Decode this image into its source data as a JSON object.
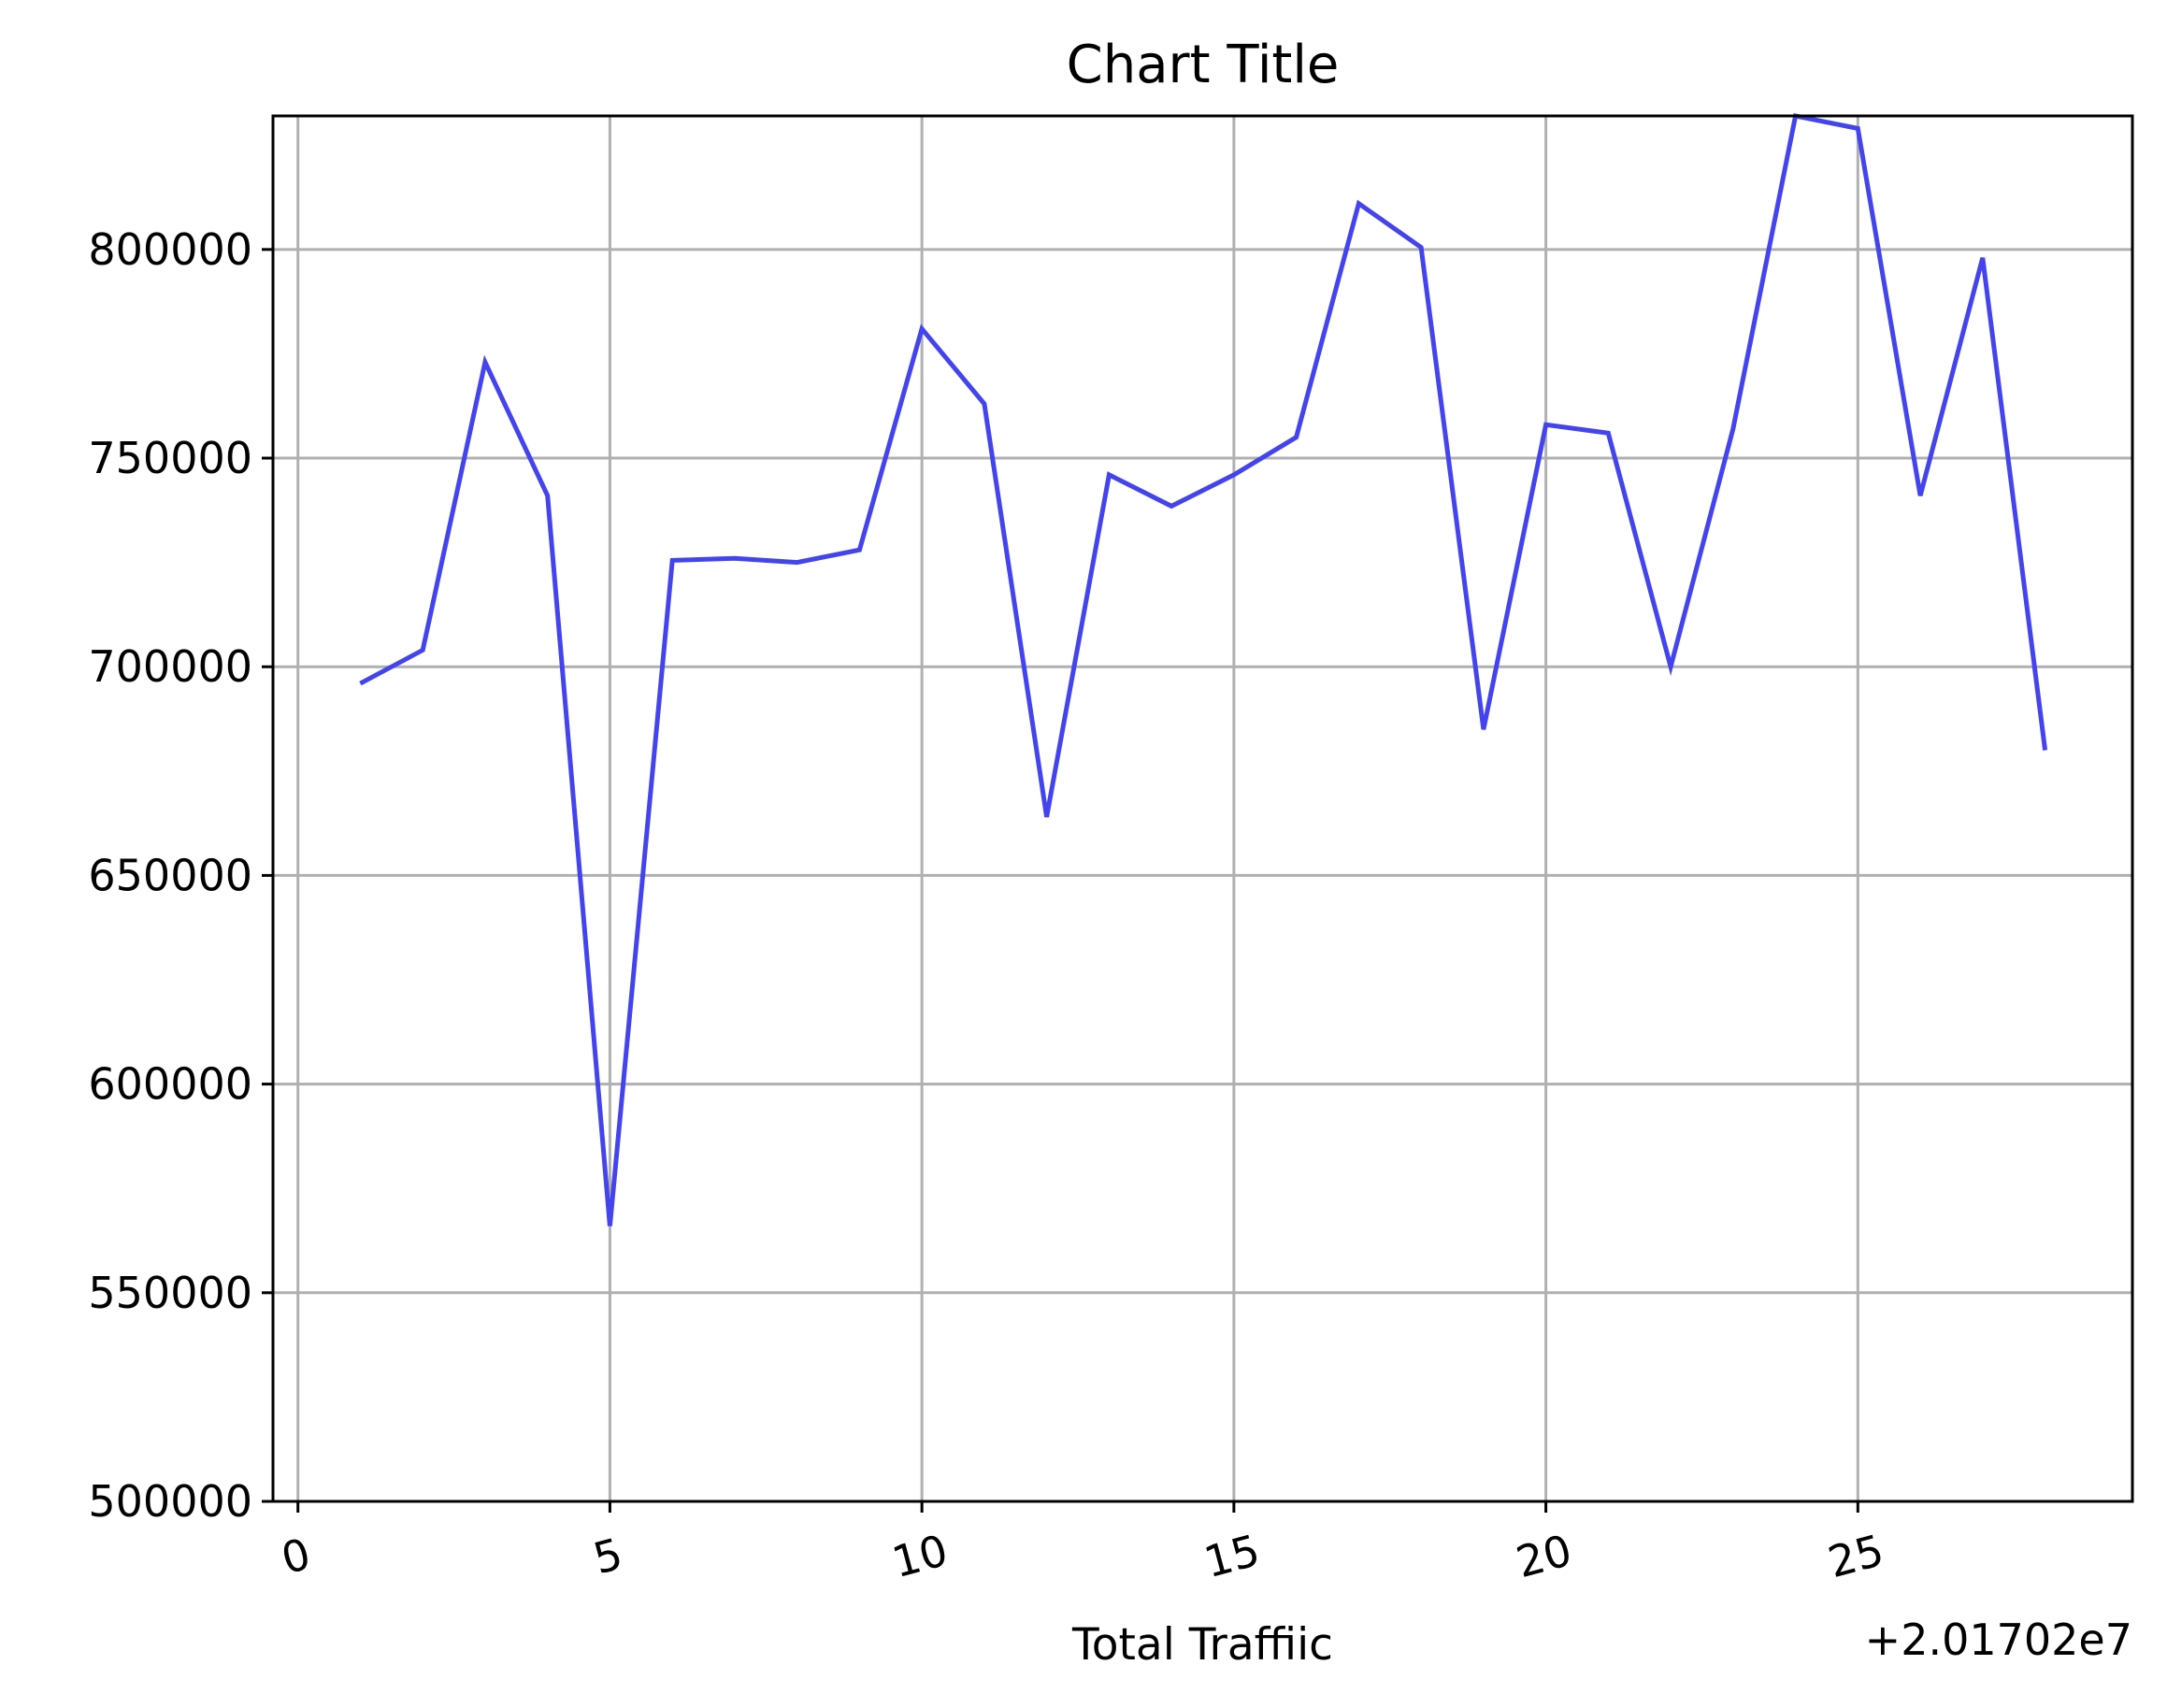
{
  "chart_data": {
    "type": "line",
    "title": "Chart Title",
    "xlabel": "Total Traffiic",
    "ylabel": "",
    "x_offset_label": "+2.01702e7",
    "xlim": [
      -0.4,
      29.4
    ],
    "ylim": [
      500000,
      832000
    ],
    "x_ticks": [
      0,
      5,
      10,
      15,
      20,
      25
    ],
    "x_tick_labels": [
      "0",
      "5",
      "10",
      "15",
      "20",
      "25"
    ],
    "y_ticks": [
      500000,
      550000,
      600000,
      650000,
      700000,
      750000,
      800000
    ],
    "y_tick_labels": [
      "500000",
      "550000",
      "600000",
      "650000",
      "700000",
      "750000",
      "800000"
    ],
    "grid": true,
    "series": [
      {
        "color": "#4444ee",
        "x": [
          1,
          2,
          3,
          4,
          5,
          6,
          7,
          8,
          9,
          10,
          11,
          12,
          13,
          14,
          15,
          16,
          17,
          18,
          19,
          20,
          21,
          22,
          23,
          24,
          25,
          26,
          27,
          28
        ],
        "y": [
          696000,
          704000,
          773000,
          741000,
          566000,
          725500,
          726000,
          725000,
          728000,
          781000,
          763000,
          664000,
          746000,
          738500,
          746000,
          755000,
          811000,
          800500,
          685000,
          758000,
          756000,
          700000,
          757000,
          832000,
          829000,
          741000,
          798000,
          680000
        ]
      }
    ]
  }
}
